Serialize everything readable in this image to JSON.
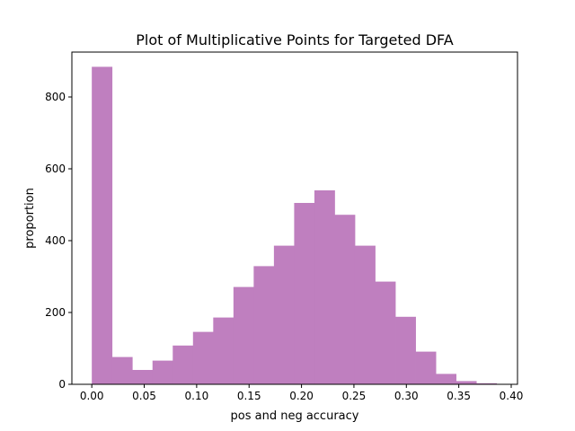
{
  "chart_data": {
    "type": "histogram",
    "title": "Plot of Multiplicative Points for Targeted DFA",
    "xlabel": "pos and neg accuracy",
    "ylabel": "proportion",
    "xlim": [
      -0.019,
      0.406
    ],
    "ylim": [
      0,
      925
    ],
    "xticks": [
      0.0,
      0.05,
      0.1,
      0.15,
      0.2,
      0.25,
      0.3,
      0.35,
      0.4
    ],
    "xtick_labels": [
      "0.00",
      "0.05",
      "0.10",
      "0.15",
      "0.20",
      "0.25",
      "0.30",
      "0.35",
      "0.40"
    ],
    "yticks": [
      0,
      200,
      400,
      600,
      800
    ],
    "ytick_labels": [
      "0",
      "200",
      "400",
      "600",
      "800"
    ],
    "bins": [
      {
        "x0": 0.0,
        "x1": 0.0193,
        "count": 884
      },
      {
        "x0": 0.0193,
        "x1": 0.0386,
        "count": 76
      },
      {
        "x0": 0.0386,
        "x1": 0.0579,
        "count": 40
      },
      {
        "x0": 0.0579,
        "x1": 0.0772,
        "count": 66
      },
      {
        "x0": 0.0772,
        "x1": 0.0965,
        "count": 108
      },
      {
        "x0": 0.0965,
        "x1": 0.1158,
        "count": 146
      },
      {
        "x0": 0.1158,
        "x1": 0.1351,
        "count": 186
      },
      {
        "x0": 0.1351,
        "x1": 0.1544,
        "count": 271
      },
      {
        "x0": 0.1544,
        "x1": 0.1737,
        "count": 329
      },
      {
        "x0": 0.1737,
        "x1": 0.193,
        "count": 386
      },
      {
        "x0": 0.193,
        "x1": 0.2123,
        "count": 505
      },
      {
        "x0": 0.2123,
        "x1": 0.2316,
        "count": 540
      },
      {
        "x0": 0.2316,
        "x1": 0.2509,
        "count": 472
      },
      {
        "x0": 0.2509,
        "x1": 0.2702,
        "count": 386
      },
      {
        "x0": 0.2702,
        "x1": 0.2895,
        "count": 286
      },
      {
        "x0": 0.2895,
        "x1": 0.3088,
        "count": 188
      },
      {
        "x0": 0.3088,
        "x1": 0.3281,
        "count": 91
      },
      {
        "x0": 0.3281,
        "x1": 0.3474,
        "count": 29
      },
      {
        "x0": 0.3474,
        "x1": 0.3667,
        "count": 9
      },
      {
        "x0": 0.3667,
        "x1": 0.386,
        "count": 3
      }
    ],
    "bar_color": "#bf7fbf",
    "grid": false,
    "legend": "none"
  }
}
